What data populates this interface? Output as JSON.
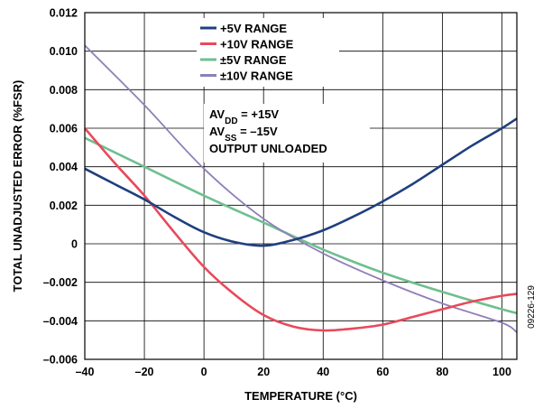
{
  "chart_data": {
    "type": "line",
    "xlabel": "TEMPERATURE (°C)",
    "ylabel": "TOTAL UNADJUSTED ERROR (%FSR)",
    "xlim": [
      -40,
      105
    ],
    "ylim": [
      -0.006,
      0.012
    ],
    "x_ticks": [
      -40,
      -20,
      0,
      20,
      40,
      60,
      80,
      100
    ],
    "x_tick_labels": [
      "–40",
      "–20",
      "0",
      "20",
      "40",
      "60",
      "80",
      "100"
    ],
    "y_ticks": [
      -0.006,
      -0.004,
      -0.002,
      0,
      0.002,
      0.004,
      0.006,
      0.008,
      0.01,
      0.012
    ],
    "y_tick_labels": [
      "–0.006",
      "–0.004",
      "–0.002",
      "0",
      "0.002",
      "0.004",
      "0.006",
      "0.008",
      "0.010",
      "0.012"
    ],
    "grid": true,
    "legend_position": "top-center",
    "series": [
      {
        "name": "+5V RANGE",
        "color": "#1f3f7f",
        "x": [
          -40,
          -30,
          -20,
          -10,
          0,
          10,
          20,
          30,
          40,
          50,
          60,
          70,
          80,
          90,
          100,
          105
        ],
        "y": [
          0.0039,
          0.0031,
          0.0023,
          0.0014,
          0.0006,
          0.0001,
          -0.0001,
          0.0002,
          0.0007,
          0.0014,
          0.0022,
          0.0031,
          0.0041,
          0.0051,
          0.006,
          0.0065
        ]
      },
      {
        "name": "+10V RANGE",
        "color": "#e8495a",
        "x": [
          -40,
          -30,
          -20,
          -10,
          0,
          10,
          20,
          30,
          40,
          50,
          60,
          70,
          80,
          90,
          100,
          105
        ],
        "y": [
          0.006,
          0.0042,
          0.0025,
          0.0006,
          -0.0012,
          -0.0026,
          -0.0037,
          -0.0043,
          -0.0045,
          -0.0044,
          -0.0042,
          -0.0038,
          -0.0034,
          -0.003,
          -0.0027,
          -0.0026
        ]
      },
      {
        "name": "±5V RANGE",
        "color": "#6fbf8f",
        "x": [
          -40,
          -20,
          0,
          20,
          40,
          60,
          80,
          100,
          105
        ],
        "y": [
          0.0055,
          0.004,
          0.0025,
          0.0011,
          -0.0003,
          -0.0015,
          -0.0025,
          -0.0034,
          -0.0036
        ]
      },
      {
        "name": "±10V RANGE",
        "color": "#8f7fb8",
        "x": [
          -40,
          -20,
          0,
          20,
          40,
          60,
          80,
          100,
          105
        ],
        "y": [
          0.0103,
          0.0072,
          0.0039,
          0.0013,
          -0.0005,
          -0.0019,
          -0.0031,
          -0.0041,
          -0.0046
        ]
      }
    ],
    "annotations": [
      {
        "main": "AV",
        "sub": "DD",
        "rest": " = +15V"
      },
      {
        "main": "AV",
        "sub": "SS",
        "rest": " = –15V"
      },
      {
        "main": "OUTPUT UNLOADED",
        "sub": "",
        "rest": ""
      }
    ],
    "figure_id": "09226-129"
  }
}
